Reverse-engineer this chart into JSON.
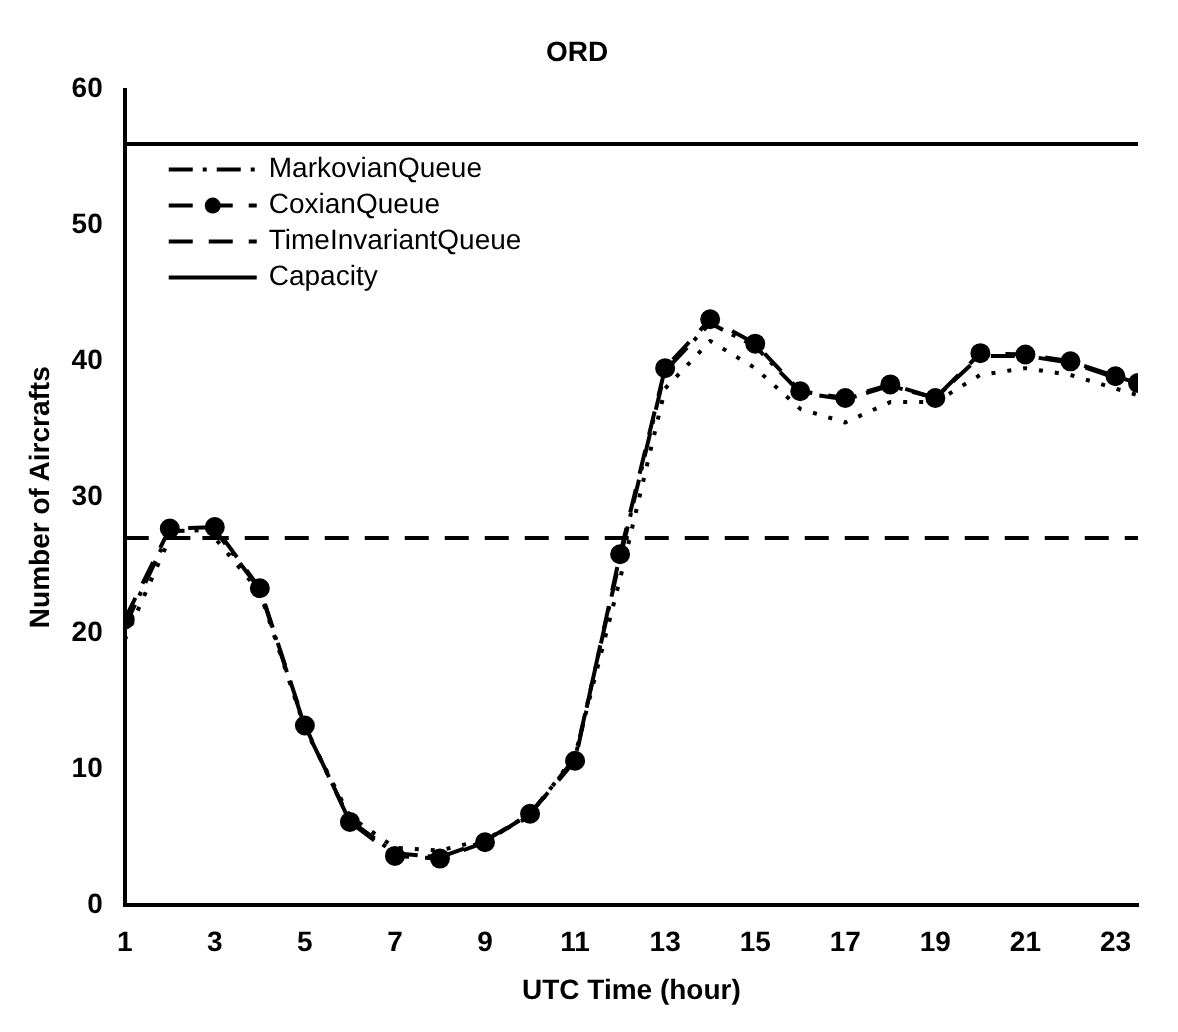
{
  "chart_data": {
    "type": "line",
    "title": "ORD",
    "xlabel": "UTC Time (hour)",
    "ylabel": "Number of Aircrafts",
    "x": [
      1,
      2,
      3,
      4,
      5,
      6,
      7,
      8,
      9,
      10,
      11,
      12,
      13,
      14,
      15,
      16,
      17,
      18,
      19,
      20,
      21,
      22,
      23,
      23.5
    ],
    "xlim": [
      1,
      23.5
    ],
    "xticks": [
      1,
      3,
      5,
      7,
      9,
      11,
      13,
      15,
      17,
      19,
      21,
      23
    ],
    "ylim": [
      0,
      60
    ],
    "yticks": [
      0,
      10,
      20,
      30,
      40,
      50,
      60
    ],
    "grid": false,
    "legend": "top left",
    "series": [
      {
        "color": "#000000",
        "line_style": "dotted",
        "marker": "none",
        "values": [
          19.5,
          27,
          27,
          23,
          13,
          6.5,
          4.2,
          4,
          4.8,
          6.5,
          11,
          24,
          38,
          41.5,
          39.5,
          36.5,
          35.5,
          37,
          37,
          39,
          39.5,
          39,
          38,
          37.5
        ]
      },
      {
        "name": "MarkovianQueue",
        "color": "#000000",
        "line_style": "dashdot",
        "marker": "none",
        "values": [
          20.5,
          27.5,
          27.6,
          23.2,
          13.1,
          6.2,
          3.8,
          3.5,
          4.7,
          6.7,
          10.8,
          25.5,
          39.3,
          42.8,
          41.1,
          37.7,
          37.2,
          38.2,
          37.3,
          40.4,
          40.4,
          39.9,
          38.8,
          38.3
        ]
      },
      {
        "name": "CoxianQueue",
        "color": "#000000",
        "line_style": "dashed",
        "marker": "circle",
        "values": [
          21,
          27.7,
          27.8,
          23.3,
          13.2,
          6.1,
          3.6,
          3.4,
          4.6,
          6.7,
          10.6,
          25.8,
          39.5,
          43.1,
          41.3,
          37.8,
          37.3,
          38.3,
          37.3,
          40.6,
          40.5,
          40,
          38.9,
          38.4
        ]
      }
    ],
    "ref_lines": [
      {
        "axis": "y",
        "value": 27,
        "label": "TimeInvariantQueue",
        "color": "#000000",
        "line_style": "dashed"
      },
      {
        "axis": "y",
        "value": 56,
        "label": "Capacity",
        "color": "#000000",
        "line_style": "solid"
      }
    ]
  }
}
